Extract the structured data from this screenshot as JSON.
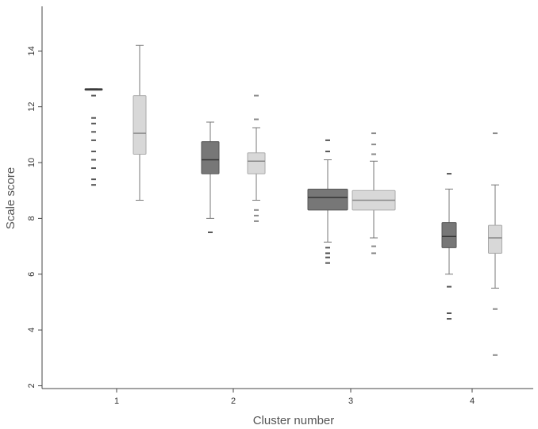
{
  "chart_data": {
    "type": "boxplot",
    "xlabel": "Cluster number",
    "ylabel": "Scale score",
    "ylim": [
      1.9,
      15.6
    ],
    "yticks": [
      2,
      4,
      6,
      8,
      10,
      12,
      14
    ],
    "categories": [
      "1",
      "2",
      "3",
      "4"
    ],
    "grid": false,
    "colors": {
      "dark_box": "#777777",
      "light_box": "#d8d8d8",
      "axis": "#444444"
    },
    "series": [
      {
        "boxes": [
          {
            "category": "1",
            "whisker_low": 12.6,
            "q1": 12.6,
            "median": 12.62,
            "q3": 12.65,
            "whisker_high": 12.65,
            "outliers": [
              9.2,
              9.4,
              9.8,
              10.1,
              10.4,
              10.8,
              11.1,
              11.4,
              11.6,
              12.4
            ]
          },
          {
            "category": "2",
            "whisker_low": 8.0,
            "q1": 9.6,
            "median": 10.1,
            "q3": 10.75,
            "whisker_high": 11.45,
            "outliers": [
              7.5
            ]
          },
          {
            "category": "3",
            "whisker_low": 7.15,
            "q1": 8.3,
            "median": 8.75,
            "q3": 9.05,
            "whisker_high": 10.1,
            "outliers": [
              6.4,
              6.6,
              6.75,
              6.95,
              10.4,
              10.8
            ]
          },
          {
            "category": "4",
            "whisker_low": 6.0,
            "q1": 6.95,
            "median": 7.35,
            "q3": 7.85,
            "whisker_high": 9.05,
            "outliers": [
              4.4,
              4.6,
              5.55,
              9.6
            ]
          }
        ]
      },
      {
        "boxes": [
          {
            "category": "1",
            "whisker_low": 8.65,
            "q1": 10.3,
            "median": 11.05,
            "q3": 12.4,
            "whisker_high": 14.2,
            "outliers": []
          },
          {
            "category": "2",
            "whisker_low": 8.65,
            "q1": 9.6,
            "median": 10.05,
            "q3": 10.35,
            "whisker_high": 11.25,
            "outliers": [
              7.9,
              8.1,
              8.3,
              11.55,
              12.4
            ]
          },
          {
            "category": "3",
            "whisker_low": 7.3,
            "q1": 8.3,
            "median": 8.65,
            "q3": 9.0,
            "whisker_high": 10.05,
            "outliers": [
              6.75,
              7.0,
              10.3,
              10.65,
              11.05
            ]
          },
          {
            "category": "4",
            "whisker_low": 5.5,
            "q1": 6.75,
            "median": 7.3,
            "q3": 7.75,
            "whisker_high": 9.2,
            "outliers": [
              3.1,
              4.75,
              11.05
            ]
          }
        ]
      }
    ]
  }
}
